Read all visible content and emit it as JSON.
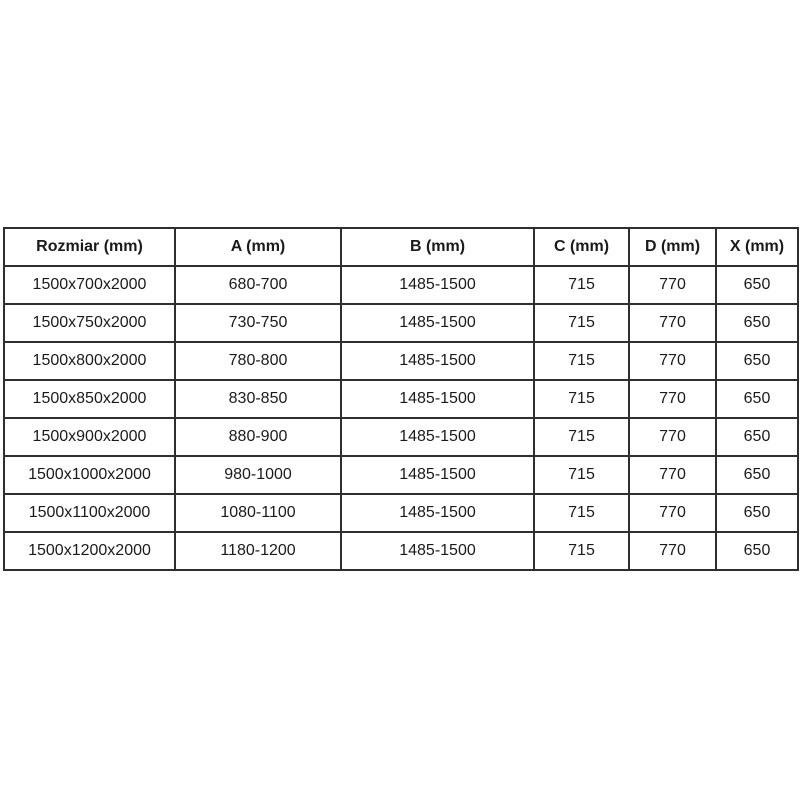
{
  "page": {
    "background_color": "#ffffff",
    "border_color": "#2e2e2e",
    "text_color": "#1a1a1a"
  },
  "chart_data": {
    "type": "table",
    "headers": [
      "Rozmiar (mm)",
      "A (mm)",
      "B (mm)",
      "C (mm)",
      "D (mm)",
      "X (mm)"
    ],
    "rows": [
      [
        "1500x700x2000",
        "680-700",
        "1485-1500",
        "715",
        "770",
        "650"
      ],
      [
        "1500x750x2000",
        "730-750",
        "1485-1500",
        "715",
        "770",
        "650"
      ],
      [
        "1500x800x2000",
        "780-800",
        "1485-1500",
        "715",
        "770",
        "650"
      ],
      [
        "1500x850x2000",
        "830-850",
        "1485-1500",
        "715",
        "770",
        "650"
      ],
      [
        "1500x900x2000",
        "880-900",
        "1485-1500",
        "715",
        "770",
        "650"
      ],
      [
        "1500x1000x2000",
        "980-1000",
        "1485-1500",
        "715",
        "770",
        "650"
      ],
      [
        "1500x1100x2000",
        "1080-1100",
        "1485-1500",
        "715",
        "770",
        "650"
      ],
      [
        "1500x1200x2000",
        "1180-1200",
        "1485-1500",
        "715",
        "770",
        "650"
      ]
    ]
  }
}
